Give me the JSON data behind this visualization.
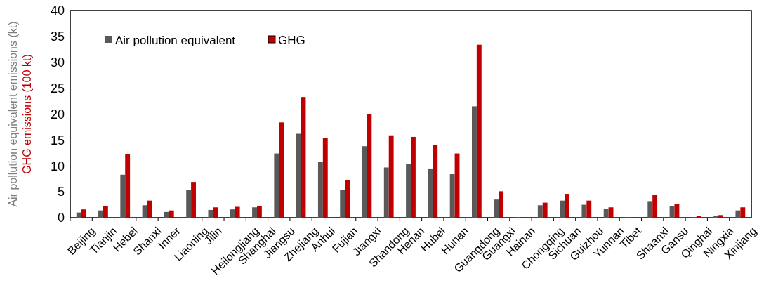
{
  "chart_data": {
    "type": "bar",
    "ylabel": "Air pollution equivalent emissions (kt)\nGHG emissions (100 kt)",
    "categories": [
      "Beijing",
      "Tianjin",
      "Hebei",
      "Shanxi",
      "Inner",
      "Liaoning",
      "Jilin",
      "Heilongjiang",
      "Shanghai",
      "Jiangsu",
      "Zhejiang",
      "Anhui",
      "Fujian",
      "Jiangxi",
      "Shandong",
      "Henan",
      "Hubei",
      "Hunan",
      "Guangdong",
      "Guangxi",
      "Hainan",
      "Chongqing",
      "Sichuan",
      "Guizhou",
      "Yunnan",
      "Tibet",
      "Shaanxi",
      "Gansu",
      "Qinghai",
      "Ningxia",
      "Xinjiang"
    ],
    "series": [
      {
        "name": "Air pollution equivalent",
        "color": "#595959",
        "values": [
          1.0,
          1.4,
          8.3,
          2.4,
          1.1,
          5.4,
          1.5,
          1.6,
          2.0,
          12.4,
          16.2,
          10.8,
          5.3,
          13.8,
          9.7,
          10.3,
          9.5,
          8.4,
          21.5,
          3.5,
          0.1,
          2.4,
          3.3,
          2.5,
          1.7,
          0.1,
          3.2,
          2.3,
          0.1,
          0.3,
          1.4
        ]
      },
      {
        "name": "GHG",
        "color": "#c00000",
        "values": [
          1.6,
          2.2,
          12.2,
          3.3,
          1.4,
          6.9,
          2.0,
          2.1,
          2.2,
          18.4,
          23.3,
          15.4,
          7.2,
          20.0,
          15.9,
          15.6,
          14.0,
          12.4,
          33.4,
          5.1,
          0.1,
          2.9,
          4.6,
          3.3,
          2.0,
          0.1,
          4.4,
          2.6,
          0.3,
          0.5,
          2.0
        ]
      }
    ],
    "ylim": [
      0,
      40
    ],
    "yticks": [
      0,
      5,
      10,
      15,
      20,
      25,
      30,
      35,
      40
    ],
    "legend": "top left",
    "grid": false
  }
}
